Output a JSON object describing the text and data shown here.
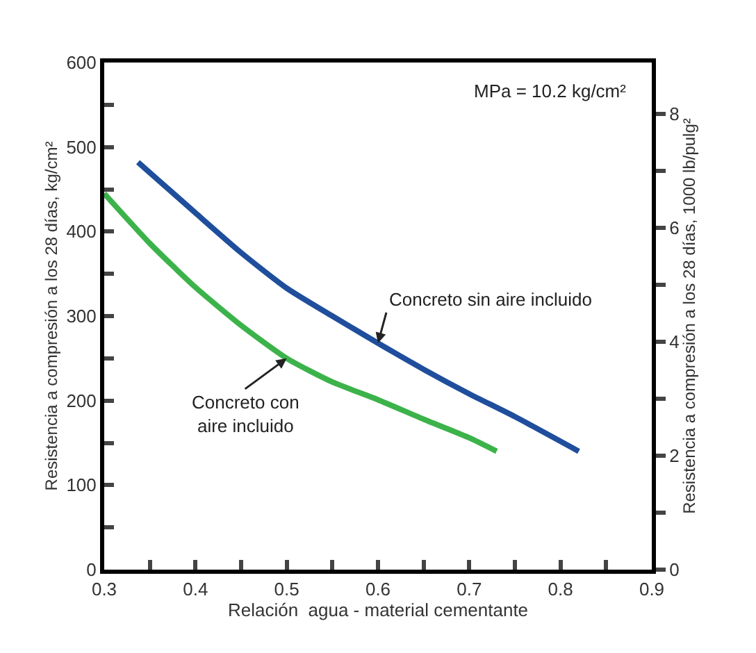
{
  "chart_data": {
    "type": "line",
    "xlabel": "Relación  agua - material cementante",
    "ylabel": "Resistencia a compresión a los 28 días, kg/cm²",
    "y2label": "Resistencia a compresión a los 28 días, 1000 lb/pulg²",
    "series": [
      {
        "name": "Concreto sin aire incluido",
        "color": "#1f4e9c",
        "x": [
          0.337,
          0.4,
          0.45,
          0.5,
          0.55,
          0.6,
          0.65,
          0.7,
          0.75,
          0.82
        ],
        "values": [
          482,
          422,
          375,
          333,
          300,
          268,
          237,
          208,
          181,
          140
        ]
      },
      {
        "name": "Concreto con\naire incluido",
        "color": "#3cb34a",
        "x": [
          0.3,
          0.35,
          0.4,
          0.45,
          0.5,
          0.55,
          0.6,
          0.65,
          0.7,
          0.73
        ],
        "values": [
          445,
          386,
          334,
          289,
          250,
          222,
          201,
          178,
          156,
          140
        ]
      }
    ],
    "annotations": [
      "MPa = 10.2 kg/cm²"
    ],
    "xlim": [
      0.3,
      0.9
    ],
    "xticks": [
      0.3,
      {
        "value": 0.35,
        "label": null
      },
      0.4,
      {
        "value": 0.45,
        "label": null
      },
      0.5,
      {
        "value": 0.55,
        "label": null
      },
      0.6,
      {
        "value": 0.65,
        "label": null
      },
      0.7,
      {
        "value": 0.75,
        "label": null
      },
      0.8,
      {
        "value": 0.85,
        "label": null
      },
      0.9
    ],
    "ylim": [
      0,
      600
    ],
    "yticks": [
      0,
      {
        "value": 50,
        "label": null
      },
      100,
      {
        "value": 150,
        "label": null
      },
      200,
      {
        "value": 250,
        "label": null
      },
      300,
      {
        "value": 350,
        "label": null
      },
      400,
      {
        "value": 450,
        "label": null
      },
      500,
      {
        "value": 550,
        "label": null
      },
      600
    ],
    "y2lim": [
      0,
      8.9
    ],
    "y2ticks": [
      0,
      {
        "value": 1,
        "label": null
      },
      2,
      {
        "value": 3,
        "label": null
      },
      4,
      {
        "value": 5,
        "label": null
      },
      6,
      {
        "value": 7,
        "label": null
      },
      8
    ],
    "legend": false,
    "marker": "none",
    "line_style": "solid"
  }
}
